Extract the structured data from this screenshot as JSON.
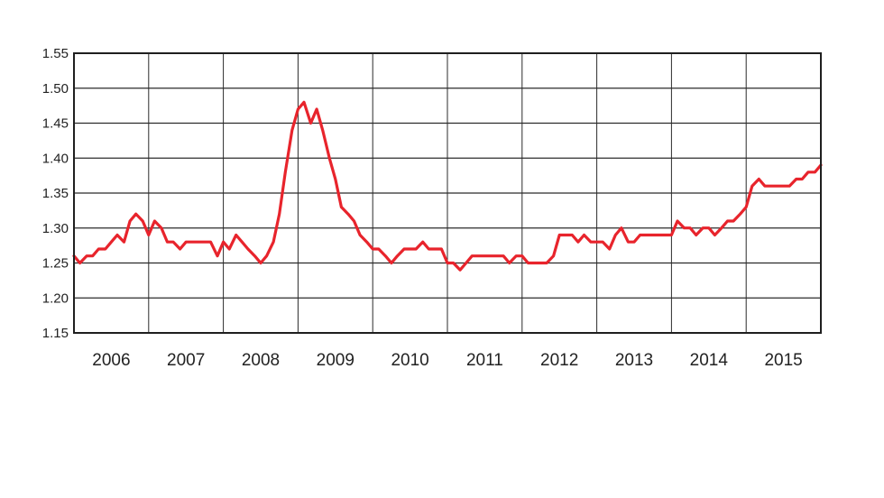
{
  "chart_data": {
    "type": "line",
    "title": "",
    "xlabel": "",
    "ylabel": "",
    "x_ticks": [
      "2006",
      "2007",
      "2008",
      "2009",
      "2010",
      "2011",
      "2012",
      "2013",
      "2014",
      "2015"
    ],
    "y_ticks": [
      "1.15",
      "1.20",
      "1.25",
      "1.30",
      "1.35",
      "1.40",
      "1.45",
      "1.50",
      "1.55"
    ],
    "xlim": [
      2006.0,
      2016.0
    ],
    "ylim": [
      1.15,
      1.55
    ],
    "grid": true,
    "series": [
      {
        "color": "#e8242c",
        "x": [
          2006.0,
          2006.08,
          2006.17,
          2006.25,
          2006.33,
          2006.42,
          2006.5,
          2006.58,
          2006.67,
          2006.75,
          2006.83,
          2006.92,
          2007.0,
          2007.08,
          2007.17,
          2007.25,
          2007.33,
          2007.42,
          2007.5,
          2007.58,
          2007.67,
          2007.75,
          2007.83,
          2007.92,
          2008.0,
          2008.08,
          2008.17,
          2008.25,
          2008.33,
          2008.42,
          2008.5,
          2008.58,
          2008.67,
          2008.75,
          2008.83,
          2008.92,
          2009.0,
          2009.08,
          2009.17,
          2009.25,
          2009.33,
          2009.42,
          2009.5,
          2009.58,
          2009.67,
          2009.75,
          2009.83,
          2009.92,
          2010.0,
          2010.08,
          2010.17,
          2010.25,
          2010.33,
          2010.42,
          2010.5,
          2010.58,
          2010.67,
          2010.75,
          2010.83,
          2010.92,
          2011.0,
          2011.08,
          2011.17,
          2011.25,
          2011.33,
          2011.42,
          2011.5,
          2011.58,
          2011.67,
          2011.75,
          2011.83,
          2011.92,
          2012.0,
          2012.08,
          2012.17,
          2012.25,
          2012.33,
          2012.42,
          2012.5,
          2012.58,
          2012.67,
          2012.75,
          2012.83,
          2012.92,
          2013.0,
          2013.08,
          2013.17,
          2013.25,
          2013.33,
          2013.42,
          2013.5,
          2013.58,
          2013.67,
          2013.75,
          2013.83,
          2013.92,
          2014.0,
          2014.08,
          2014.17,
          2014.25,
          2014.33,
          2014.42,
          2014.5,
          2014.58,
          2014.67,
          2014.75,
          2014.83,
          2014.92,
          2015.0,
          2015.08,
          2015.17,
          2015.25,
          2015.33,
          2015.42,
          2015.5,
          2015.58,
          2015.67,
          2015.75,
          2015.83,
          2015.92,
          2016.0
        ],
        "values": [
          1.26,
          1.25,
          1.26,
          1.26,
          1.27,
          1.27,
          1.28,
          1.29,
          1.28,
          1.31,
          1.32,
          1.31,
          1.29,
          1.31,
          1.3,
          1.28,
          1.28,
          1.27,
          1.28,
          1.28,
          1.28,
          1.28,
          1.28,
          1.26,
          1.28,
          1.27,
          1.29,
          1.28,
          1.27,
          1.26,
          1.25,
          1.26,
          1.28,
          1.32,
          1.38,
          1.44,
          1.47,
          1.48,
          1.45,
          1.47,
          1.44,
          1.4,
          1.37,
          1.33,
          1.32,
          1.31,
          1.29,
          1.28,
          1.27,
          1.27,
          1.26,
          1.25,
          1.26,
          1.27,
          1.27,
          1.27,
          1.28,
          1.27,
          1.27,
          1.27,
          1.25,
          1.25,
          1.24,
          1.25,
          1.26,
          1.26,
          1.26,
          1.26,
          1.26,
          1.26,
          1.25,
          1.26,
          1.26,
          1.25,
          1.25,
          1.25,
          1.25,
          1.26,
          1.29,
          1.29,
          1.29,
          1.28,
          1.29,
          1.28,
          1.28,
          1.28,
          1.27,
          1.29,
          1.3,
          1.28,
          1.28,
          1.29,
          1.29,
          1.29,
          1.29,
          1.29,
          1.29,
          1.31,
          1.3,
          1.3,
          1.29,
          1.3,
          1.3,
          1.29,
          1.3,
          1.31,
          1.31,
          1.32,
          1.33,
          1.36,
          1.37,
          1.36,
          1.36,
          1.36,
          1.36,
          1.36,
          1.37,
          1.37,
          1.38,
          1.38,
          1.39
        ]
      }
    ]
  }
}
